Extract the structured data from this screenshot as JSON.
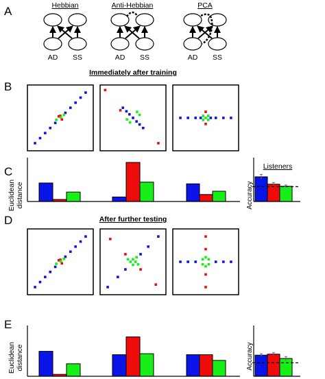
{
  "colors": {
    "blue": "#0a14e6",
    "red": "#ee0b0b",
    "green": "#18ee18",
    "black": "#000000"
  },
  "panel_letters": {
    "a": "A",
    "b": "B",
    "c": "C",
    "d": "D",
    "e": "E"
  },
  "section_titles": {
    "after_training": "Immediately after training",
    "after_testing": "After further testing"
  },
  "networks": [
    {
      "title": "Hebbian",
      "node_labels": [
        "AD",
        "SS"
      ],
      "variant": "hebbian"
    },
    {
      "title": "Anti-Hebbian",
      "node_labels": [
        "AD",
        "SS"
      ],
      "variant": "anti"
    },
    {
      "title": "PCA",
      "node_labels": [
        "AD",
        "SS"
      ],
      "variant": "pca"
    }
  ],
  "bar_axis": {
    "ylabel_line1": "Euclidean",
    "ylabel_line2": "distance"
  },
  "listeners": {
    "title": "Listeners",
    "ylabel": "Accuracy"
  },
  "chart_data": [
    {
      "panel": "B",
      "type": "scatter",
      "model": "Hebbian",
      "condition": "Immediately after training",
      "series": [
        {
          "color": "blue",
          "points": [
            [
              -5,
              -5
            ],
            [
              -4,
              -4
            ],
            [
              -3,
              -3
            ],
            [
              -2,
              -2
            ],
            [
              -1,
              -1
            ],
            [
              1,
              1
            ],
            [
              2,
              2
            ],
            [
              3,
              3
            ],
            [
              4,
              4
            ],
            [
              5,
              5
            ]
          ]
        },
        {
          "color": "red",
          "points": [
            [
              -0.3,
              0.3
            ],
            [
              0.3,
              -0.3
            ],
            [
              0,
              0.4
            ]
          ]
        },
        {
          "color": "green",
          "points": [
            [
              -0.8,
              -0.4
            ],
            [
              0.7,
              0.6
            ],
            [
              0.1,
              0.1
            ]
          ]
        }
      ]
    },
    {
      "panel": "B",
      "type": "scatter",
      "model": "Anti-Hebbian",
      "condition": "Immediately after training",
      "series": [
        {
          "color": "blue",
          "points": [
            [
              -2,
              2
            ],
            [
              -1.3,
              1.3
            ],
            [
              -0.7,
              0.7
            ],
            [
              0,
              0
            ],
            [
              0.7,
              -0.7
            ],
            [
              1.3,
              -1.3
            ],
            [
              2,
              -2
            ]
          ]
        },
        {
          "color": "red",
          "points": [
            [
              -5.5,
              5.5
            ],
            [
              -2.5,
              1.5
            ],
            [
              5,
              -5
            ]
          ]
        },
        {
          "color": "green",
          "points": [
            [
              0.8,
              1.2
            ],
            [
              1.3,
              0.6
            ],
            [
              -0.6,
              -0.9
            ],
            [
              -1.2,
              -0.3
            ]
          ]
        }
      ]
    },
    {
      "panel": "B",
      "type": "scatter",
      "model": "PCA",
      "condition": "Immediately after training",
      "series": [
        {
          "color": "blue",
          "points": [
            [
              -5,
              0
            ],
            [
              -3.5,
              0
            ],
            [
              -2,
              0
            ],
            [
              -1,
              0
            ],
            [
              1,
              0
            ],
            [
              2,
              0
            ],
            [
              3.5,
              0
            ],
            [
              5,
              0
            ]
          ]
        },
        {
          "color": "red",
          "points": [
            [
              0,
              1.2
            ],
            [
              0,
              -1.2
            ]
          ]
        },
        {
          "color": "green",
          "points": [
            [
              -0.5,
              0.4
            ],
            [
              0.5,
              0.4
            ],
            [
              -0.5,
              -0.4
            ],
            [
              0.5,
              -0.4
            ],
            [
              0,
              0
            ]
          ]
        }
      ]
    },
    {
      "panel": "C",
      "type": "bar",
      "model": "Hebbian",
      "ylim": [
        0,
        1
      ],
      "categories": [
        "blue",
        "red",
        "green"
      ],
      "values": [
        0.45,
        0.05,
        0.23
      ]
    },
    {
      "panel": "C",
      "type": "bar",
      "model": "Anti-Hebbian",
      "ylim": [
        0,
        1
      ],
      "categories": [
        "blue",
        "red",
        "green"
      ],
      "values": [
        0.11,
        0.95,
        0.47
      ]
    },
    {
      "panel": "C",
      "type": "bar",
      "model": "PCA",
      "ylim": [
        0,
        1
      ],
      "categories": [
        "blue",
        "red",
        "green"
      ],
      "values": [
        0.43,
        0.17,
        0.25
      ]
    },
    {
      "panel": "C",
      "type": "bar",
      "model": "Listeners",
      "ylim": [
        0,
        1
      ],
      "categories": [
        "blue",
        "red",
        "green"
      ],
      "values": [
        0.6,
        0.42,
        0.37
      ],
      "errors": [
        0.06,
        0.04,
        0.03
      ],
      "reference_line": 0.36
    },
    {
      "panel": "D",
      "type": "scatter",
      "model": "Hebbian",
      "condition": "After further testing",
      "series": [
        {
          "color": "blue",
          "points": [
            [
              -5,
              -5
            ],
            [
              -4,
              -4
            ],
            [
              -3,
              -3
            ],
            [
              -2,
              -2
            ],
            [
              -1,
              -1
            ],
            [
              1,
              1
            ],
            [
              2,
              2
            ],
            [
              3,
              3
            ],
            [
              4,
              4
            ],
            [
              5,
              5
            ]
          ]
        },
        {
          "color": "red",
          "points": [
            [
              -0.3,
              0.3
            ],
            [
              0.3,
              -0.3
            ],
            [
              0,
              0.4
            ]
          ]
        },
        {
          "color": "green",
          "points": [
            [
              -0.8,
              -0.4
            ],
            [
              0.7,
              0.6
            ],
            [
              0.1,
              0.1
            ]
          ]
        }
      ]
    },
    {
      "panel": "D",
      "type": "scatter",
      "model": "Anti-Hebbian",
      "condition": "After further testing",
      "series": [
        {
          "color": "blue",
          "points": [
            [
              -5,
              -5
            ],
            [
              -3,
              -3
            ],
            [
              -1.5,
              -1.5
            ],
            [
              1.5,
              1.5
            ],
            [
              3,
              3
            ],
            [
              5,
              5
            ]
          ]
        },
        {
          "color": "red",
          "points": [
            [
              -4.5,
              4.5
            ],
            [
              -1.5,
              1.5
            ],
            [
              1.5,
              -1.5
            ],
            [
              4.5,
              -4.5
            ]
          ]
        },
        {
          "color": "green",
          "points": [
            [
              -1,
              0.5
            ],
            [
              -0.5,
              0
            ],
            [
              0,
              0.5
            ],
            [
              0.5,
              0
            ],
            [
              1,
              -0.5
            ],
            [
              0,
              -0.6
            ],
            [
              0.7,
              0.9
            ]
          ]
        }
      ]
    },
    {
      "panel": "D",
      "type": "scatter",
      "model": "PCA",
      "condition": "After further testing",
      "series": [
        {
          "color": "blue",
          "points": [
            [
              -5,
              0
            ],
            [
              -3.5,
              0
            ],
            [
              -2,
              0
            ],
            [
              2,
              0
            ],
            [
              3.5,
              0
            ],
            [
              5,
              0
            ]
          ]
        },
        {
          "color": "red",
          "points": [
            [
              0,
              5
            ],
            [
              0,
              2.5
            ],
            [
              0,
              -2.5
            ],
            [
              0,
              -5
            ]
          ]
        },
        {
          "color": "green",
          "points": [
            [
              -0.6,
              0.5
            ],
            [
              0.6,
              0.5
            ],
            [
              -0.6,
              -0.5
            ],
            [
              0.6,
              -0.5
            ],
            [
              0,
              0.9
            ],
            [
              0,
              -0.9
            ]
          ]
        }
      ]
    },
    {
      "panel": "E",
      "type": "bar",
      "model": "Hebbian",
      "ylim": [
        0,
        1
      ],
      "categories": [
        "blue",
        "red",
        "green"
      ],
      "values": [
        0.52,
        0.04,
        0.26
      ]
    },
    {
      "panel": "E",
      "type": "bar",
      "model": "Anti-Hebbian",
      "ylim": [
        0,
        1
      ],
      "categories": [
        "blue",
        "red",
        "green"
      ],
      "values": [
        0.45,
        0.82,
        0.47
      ]
    },
    {
      "panel": "E",
      "type": "bar",
      "model": "PCA",
      "ylim": [
        0,
        1
      ],
      "categories": [
        "blue",
        "red",
        "green"
      ],
      "values": [
        0.45,
        0.45,
        0.33
      ]
    },
    {
      "panel": "E",
      "type": "bar",
      "model": "Listeners",
      "ylim": [
        0,
        1
      ],
      "categories": [
        "blue",
        "red",
        "green"
      ],
      "values": [
        0.44,
        0.46,
        0.37
      ],
      "errors": [
        0.03,
        0.03,
        0.04
      ],
      "reference_line": 0.28
    }
  ]
}
